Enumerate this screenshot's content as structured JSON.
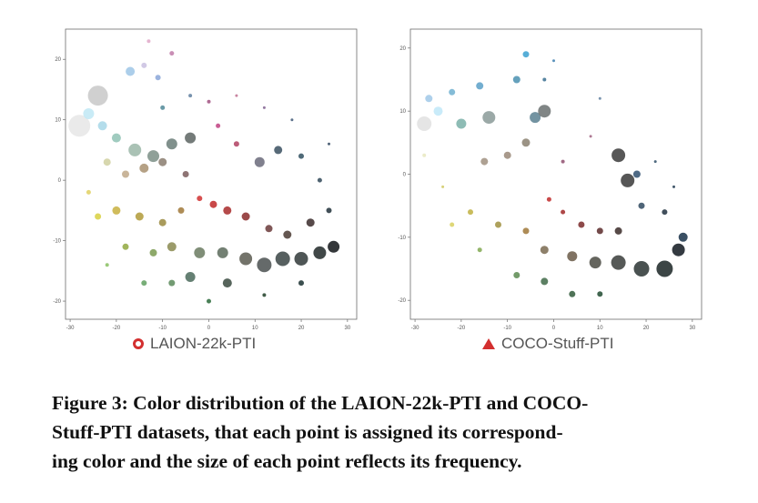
{
  "legend": {
    "left_label": "LAION-22k-PTI",
    "right_label": "COCO-Stuff-PTI",
    "left_marker_icon": "circle-outline-icon",
    "right_marker_icon": "triangle-filled-icon",
    "marker_color": "#d32f2f"
  },
  "caption": {
    "line1": "Figure 3: Color distribution of the LAION-22k-PTI and COCO-",
    "line2": "Stuff-PTI datasets, that each point is assigned its correspond-",
    "line3": "ing color and the size of each point reflects its frequency."
  },
  "chart_data": [
    {
      "type": "scatter",
      "name": "",
      "xlim": [
        -31,
        32
      ],
      "ylim": [
        -23,
        25
      ],
      "xticks": [
        -30,
        -20,
        -10,
        0,
        10,
        20,
        30
      ],
      "yticks": [
        20,
        10,
        0,
        -10,
        -20
      ],
      "grid": false,
      "points": [
        {
          "x": -24,
          "y": 14,
          "s": 22,
          "c": "#c8c8c8"
        },
        {
          "x": -28,
          "y": 9,
          "s": 24,
          "c": "#e6e6e6"
        },
        {
          "x": -26,
          "y": 11,
          "s": 12,
          "c": "#bfe8f5"
        },
        {
          "x": -23,
          "y": 9,
          "s": 10,
          "c": "#a7d7e8"
        },
        {
          "x": -17,
          "y": 18,
          "s": 10,
          "c": "#9ec6e6"
        },
        {
          "x": -14,
          "y": 19,
          "s": 6,
          "c": "#c9c0e0"
        },
        {
          "x": -11,
          "y": 17,
          "s": 6,
          "c": "#8aa6d8"
        },
        {
          "x": -8,
          "y": 21,
          "s": 5,
          "c": "#c07aa8"
        },
        {
          "x": -13,
          "y": 23,
          "s": 4,
          "c": "#e0a8c8"
        },
        {
          "x": -16,
          "y": 5,
          "s": 14,
          "c": "#9bb7a8"
        },
        {
          "x": -12,
          "y": 4,
          "s": 13,
          "c": "#7b8f86"
        },
        {
          "x": -8,
          "y": 6,
          "s": 12,
          "c": "#6a7d78"
        },
        {
          "x": -4,
          "y": 7,
          "s": 12,
          "c": "#5c6462"
        },
        {
          "x": -20,
          "y": 7,
          "s": 10,
          "c": "#8fc2b4"
        },
        {
          "x": -22,
          "y": 3,
          "s": 8,
          "c": "#d0d0a0"
        },
        {
          "x": -18,
          "y": 1,
          "s": 8,
          "c": "#c0a888"
        },
        {
          "x": -14,
          "y": 2,
          "s": 10,
          "c": "#a89070"
        },
        {
          "x": -10,
          "y": 3,
          "s": 9,
          "c": "#8a7c6e"
        },
        {
          "x": -5,
          "y": 1,
          "s": 7,
          "c": "#7a5c5c"
        },
        {
          "x": 11,
          "y": 3,
          "s": 11,
          "c": "#6a6a7a"
        },
        {
          "x": 15,
          "y": 5,
          "s": 9,
          "c": "#3a5060"
        },
        {
          "x": 6,
          "y": 6,
          "s": 6,
          "c": "#b04060"
        },
        {
          "x": 2,
          "y": 9,
          "s": 5,
          "c": "#c04080"
        },
        {
          "x": -2,
          "y": -3,
          "s": 6,
          "c": "#d03030"
        },
        {
          "x": 1,
          "y": -4,
          "s": 8,
          "c": "#c02828"
        },
        {
          "x": 4,
          "y": -5,
          "s": 9,
          "c": "#a82a2a"
        },
        {
          "x": 8,
          "y": -6,
          "s": 9,
          "c": "#8a2a2a"
        },
        {
          "x": -20,
          "y": -5,
          "s": 9,
          "c": "#c8b040"
        },
        {
          "x": -15,
          "y": -6,
          "s": 9,
          "c": "#b09a38"
        },
        {
          "x": -10,
          "y": -7,
          "s": 8,
          "c": "#9a8a40"
        },
        {
          "x": -6,
          "y": -5,
          "s": 7,
          "c": "#a07838"
        },
        {
          "x": -24,
          "y": -6,
          "s": 7,
          "c": "#d8d040"
        },
        {
          "x": -18,
          "y": -11,
          "s": 7,
          "c": "#90a840"
        },
        {
          "x": -12,
          "y": -12,
          "s": 8,
          "c": "#7a9a50"
        },
        {
          "x": -8,
          "y": -11,
          "s": 10,
          "c": "#8a8a50"
        },
        {
          "x": -2,
          "y": -12,
          "s": 12,
          "c": "#6a7a60"
        },
        {
          "x": 3,
          "y": -12,
          "s": 12,
          "c": "#5a6a5a"
        },
        {
          "x": 8,
          "y": -13,
          "s": 14,
          "c": "#5a5a50"
        },
        {
          "x": 12,
          "y": -14,
          "s": 16,
          "c": "#4a5050"
        },
        {
          "x": 16,
          "y": -13,
          "s": 16,
          "c": "#3a4444"
        },
        {
          "x": 20,
          "y": -13,
          "s": 15,
          "c": "#303838"
        },
        {
          "x": 24,
          "y": -12,
          "s": 14,
          "c": "#202828"
        },
        {
          "x": 27,
          "y": -11,
          "s": 13,
          "c": "#101418"
        },
        {
          "x": 22,
          "y": -7,
          "s": 9,
          "c": "#3a2a2a"
        },
        {
          "x": 17,
          "y": -9,
          "s": 9,
          "c": "#4a3a32"
        },
        {
          "x": 13,
          "y": -8,
          "s": 8,
          "c": "#6a3a3a"
        },
        {
          "x": 26,
          "y": -5,
          "s": 6,
          "c": "#20303a"
        },
        {
          "x": 24,
          "y": 0,
          "s": 5,
          "c": "#304858"
        },
        {
          "x": 20,
          "y": 4,
          "s": 6,
          "c": "#305060"
        },
        {
          "x": -4,
          "y": -16,
          "s": 11,
          "c": "#4a6a5a"
        },
        {
          "x": 4,
          "y": -17,
          "s": 10,
          "c": "#3a4a40"
        },
        {
          "x": -8,
          "y": -17,
          "s": 7,
          "c": "#5a8a5a"
        },
        {
          "x": -14,
          "y": -17,
          "s": 6,
          "c": "#60a060"
        },
        {
          "x": 0,
          "y": -20,
          "s": 5,
          "c": "#2a6a3a"
        },
        {
          "x": -10,
          "y": 12,
          "s": 5,
          "c": "#508898"
        },
        {
          "x": -4,
          "y": 14,
          "s": 4,
          "c": "#6080a0"
        },
        {
          "x": 0,
          "y": 13,
          "s": 4,
          "c": "#a05080"
        },
        {
          "x": 6,
          "y": 14,
          "s": 3,
          "c": "#c07090"
        },
        {
          "x": 12,
          "y": 12,
          "s": 3,
          "c": "#806090"
        },
        {
          "x": 18,
          "y": 10,
          "s": 3,
          "c": "#405878"
        },
        {
          "x": 26,
          "y": 6,
          "s": 3,
          "c": "#304860"
        },
        {
          "x": -26,
          "y": -2,
          "s": 5,
          "c": "#e0d060"
        },
        {
          "x": -22,
          "y": -14,
          "s": 4,
          "c": "#88c060"
        },
        {
          "x": 12,
          "y": -19,
          "s": 4,
          "c": "#204028"
        },
        {
          "x": 20,
          "y": -17,
          "s": 6,
          "c": "#1a3030"
        }
      ]
    },
    {
      "type": "scatter",
      "name": "",
      "xlim": [
        -31,
        32
      ],
      "ylim": [
        -23,
        23
      ],
      "xticks": [
        -30,
        -20,
        -10,
        0,
        10,
        20,
        30
      ],
      "yticks": [
        20,
        10,
        0,
        -10,
        -20
      ],
      "grid": false,
      "points": [
        {
          "x": -28,
          "y": 8,
          "s": 16,
          "c": "#e0e0e0"
        },
        {
          "x": -25,
          "y": 10,
          "s": 10,
          "c": "#c0e8f8"
        },
        {
          "x": -27,
          "y": 12,
          "s": 8,
          "c": "#a0c8e8"
        },
        {
          "x": -22,
          "y": 13,
          "s": 7,
          "c": "#70b0d0"
        },
        {
          "x": -16,
          "y": 14,
          "s": 8,
          "c": "#5aa0c8"
        },
        {
          "x": -8,
          "y": 15,
          "s": 8,
          "c": "#4a90b0"
        },
        {
          "x": -6,
          "y": 19,
          "s": 7,
          "c": "#3aa0d0"
        },
        {
          "x": -14,
          "y": 9,
          "s": 14,
          "c": "#8a9a98"
        },
        {
          "x": -20,
          "y": 8,
          "s": 11,
          "c": "#7ab0a8"
        },
        {
          "x": -4,
          "y": 9,
          "s": 12,
          "c": "#5a8090"
        },
        {
          "x": -2,
          "y": 10,
          "s": 14,
          "c": "#6a7070"
        },
        {
          "x": -6,
          "y": 5,
          "s": 9,
          "c": "#8a8070"
        },
        {
          "x": -10,
          "y": 3,
          "s": 8,
          "c": "#9a8878"
        },
        {
          "x": -15,
          "y": 2,
          "s": 8,
          "c": "#a09080"
        },
        {
          "x": 14,
          "y": 3,
          "s": 15,
          "c": "#3a3a3a"
        },
        {
          "x": 16,
          "y": -1,
          "s": 15,
          "c": "#383838"
        },
        {
          "x": 18,
          "y": 0,
          "s": 8,
          "c": "#305070"
        },
        {
          "x": 19,
          "y": -5,
          "s": 7,
          "c": "#304a60"
        },
        {
          "x": 24,
          "y": -6,
          "s": 6,
          "c": "#203040"
        },
        {
          "x": -1,
          "y": -4,
          "s": 5,
          "c": "#c02a2a"
        },
        {
          "x": 2,
          "y": -6,
          "s": 5,
          "c": "#a02828"
        },
        {
          "x": 6,
          "y": -8,
          "s": 7,
          "c": "#7a2a2a"
        },
        {
          "x": 10,
          "y": -9,
          "s": 7,
          "c": "#5a2a2a"
        },
        {
          "x": 14,
          "y": -9,
          "s": 8,
          "c": "#3a2a28"
        },
        {
          "x": -18,
          "y": -6,
          "s": 6,
          "c": "#c0b040"
        },
        {
          "x": -12,
          "y": -8,
          "s": 7,
          "c": "#a09040"
        },
        {
          "x": -6,
          "y": -9,
          "s": 7,
          "c": "#a07838"
        },
        {
          "x": -2,
          "y": -12,
          "s": 9,
          "c": "#7a6a50"
        },
        {
          "x": 4,
          "y": -13,
          "s": 11,
          "c": "#6a5a48"
        },
        {
          "x": 9,
          "y": -14,
          "s": 13,
          "c": "#4a4a42"
        },
        {
          "x": 14,
          "y": -14,
          "s": 16,
          "c": "#383c3a"
        },
        {
          "x": 19,
          "y": -15,
          "s": 17,
          "c": "#2a3432"
        },
        {
          "x": 24,
          "y": -15,
          "s": 18,
          "c": "#1a2424"
        },
        {
          "x": 27,
          "y": -12,
          "s": 14,
          "c": "#101820"
        },
        {
          "x": 28,
          "y": -10,
          "s": 10,
          "c": "#183048"
        },
        {
          "x": -8,
          "y": -16,
          "s": 7,
          "c": "#5a8a50"
        },
        {
          "x": -2,
          "y": -17,
          "s": 8,
          "c": "#406a48"
        },
        {
          "x": 4,
          "y": -19,
          "s": 7,
          "c": "#305a3a"
        },
        {
          "x": 10,
          "y": -19,
          "s": 6,
          "c": "#204a30"
        },
        {
          "x": -16,
          "y": -12,
          "s": 5,
          "c": "#80a850"
        },
        {
          "x": -22,
          "y": -8,
          "s": 5,
          "c": "#d8d060"
        },
        {
          "x": 2,
          "y": 2,
          "s": 4,
          "c": "#905070"
        },
        {
          "x": 8,
          "y": 6,
          "s": 3,
          "c": "#a06080"
        },
        {
          "x": 10,
          "y": 12,
          "s": 3,
          "c": "#6080a0"
        },
        {
          "x": 0,
          "y": 18,
          "s": 3,
          "c": "#4080b0"
        },
        {
          "x": -2,
          "y": 15,
          "s": 4,
          "c": "#3a7090"
        },
        {
          "x": 22,
          "y": 2,
          "s": 3,
          "c": "#30506a"
        },
        {
          "x": 26,
          "y": -2,
          "s": 3,
          "c": "#203a50"
        },
        {
          "x": -24,
          "y": -2,
          "s": 3,
          "c": "#d0c860"
        },
        {
          "x": -28,
          "y": 3,
          "s": 4,
          "c": "#e8e8c0"
        }
      ]
    }
  ]
}
